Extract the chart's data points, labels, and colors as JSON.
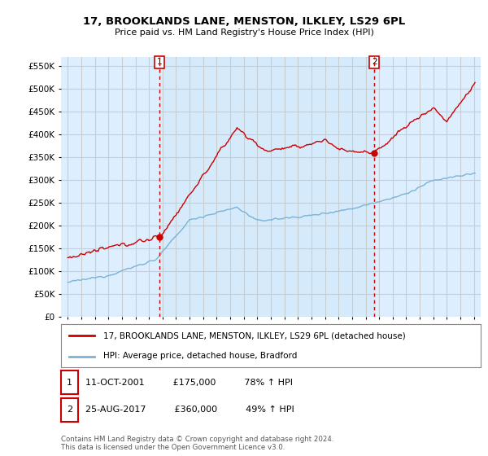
{
  "title": "17, BROOKLANDS LANE, MENSTON, ILKLEY, LS29 6PL",
  "subtitle": "Price paid vs. HM Land Registry's House Price Index (HPI)",
  "legend_line1": "17, BROOKLANDS LANE, MENSTON, ILKLEY, LS29 6PL (detached house)",
  "legend_line2": "HPI: Average price, detached house, Bradford",
  "annotation1_date": "11-OCT-2001",
  "annotation1_price": "£175,000",
  "annotation1_hpi": "78% ↑ HPI",
  "annotation2_date": "25-AUG-2017",
  "annotation2_price": "£360,000",
  "annotation2_hpi": "49% ↑ HPI",
  "footnote": "Contains HM Land Registry data © Crown copyright and database right 2024.\nThis data is licensed under the Open Government Licence v3.0.",
  "sale1_year": 2001.79,
  "sale1_value": 175000,
  "sale2_year": 2017.65,
  "sale2_value": 360000,
  "hpi_color": "#7ab3d4",
  "property_color": "#cc0000",
  "marker_line_color": "#cc0000",
  "background_color": "#ffffff",
  "plot_bg_color": "#ddeeff",
  "grid_color": "#cccccc",
  "ylim_min": 0,
  "ylim_max": 570000,
  "ytick_values": [
    0,
    50000,
    100000,
    150000,
    200000,
    250000,
    300000,
    350000,
    400000,
    450000,
    500000,
    550000
  ],
  "ytick_labels": [
    "£0",
    "£50K",
    "£100K",
    "£150K",
    "£200K",
    "£250K",
    "£300K",
    "£350K",
    "£400K",
    "£450K",
    "£500K",
    "£550K"
  ],
  "xlim_min": 1994.5,
  "xlim_max": 2025.5
}
